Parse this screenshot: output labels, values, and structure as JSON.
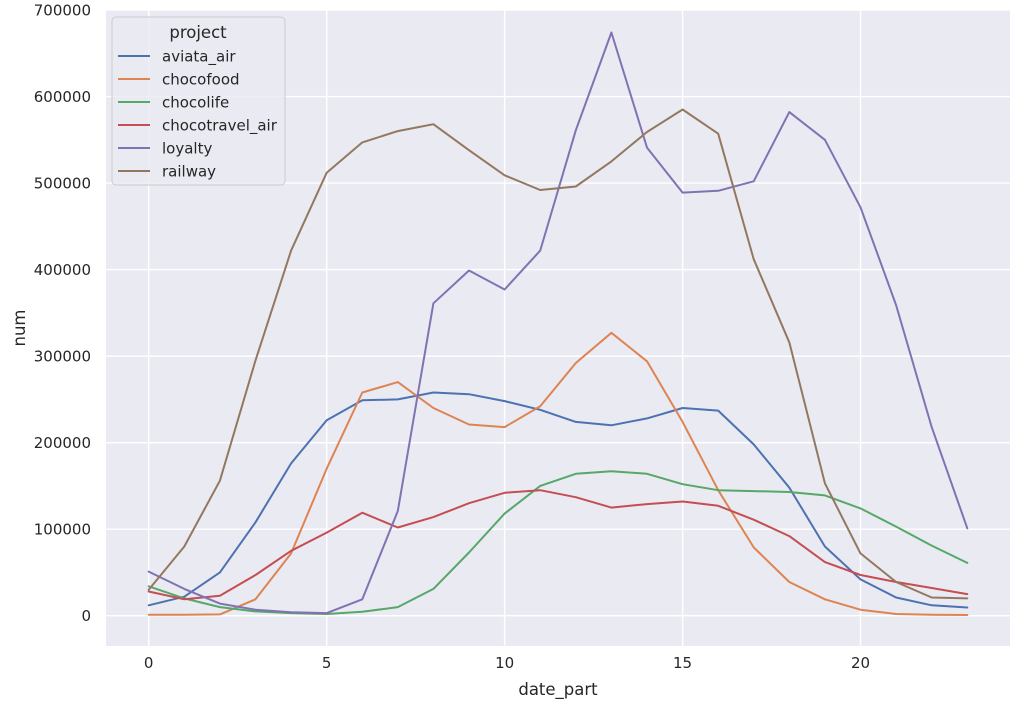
{
  "chart_data": {
    "type": "line",
    "xlabel": "date_part",
    "ylabel": "num",
    "xlim": [
      -1.2,
      24.2
    ],
    "ylim": [
      -35000,
      700000
    ],
    "xticks": [
      0,
      5,
      10,
      15,
      20
    ],
    "yticks": [
      0,
      100000,
      200000,
      300000,
      400000,
      500000,
      600000,
      700000
    ],
    "grid": true,
    "legend_title": "project",
    "legend_position": "top-left",
    "x": [
      0,
      1,
      2,
      3,
      4,
      5,
      6,
      7,
      8,
      9,
      10,
      11,
      12,
      13,
      14,
      15,
      16,
      17,
      18,
      19,
      20,
      21,
      22,
      23
    ],
    "series": [
      {
        "name": "aviata_air",
        "color": "#4c72b0",
        "values": [
          12000,
          22000,
          50000,
          108000,
          176000,
          226000,
          249000,
          250000,
          258000,
          256000,
          248000,
          238000,
          224000,
          220000,
          228000,
          240000,
          237000,
          198000,
          148000,
          80000,
          42000,
          21000,
          12000,
          9500
        ]
      },
      {
        "name": "chocofood",
        "color": "#dd8452",
        "values": [
          1000,
          1000,
          1500,
          19000,
          72000,
          170000,
          258000,
          270000,
          240000,
          221000,
          218000,
          242000,
          292000,
          327000,
          294000,
          224000,
          145000,
          79000,
          39000,
          19000,
          7000,
          2000,
          1000,
          800
        ]
      },
      {
        "name": "chocolife",
        "color": "#55a868",
        "values": [
          34000,
          20000,
          10000,
          5000,
          3000,
          2000,
          4500,
          10000,
          31000,
          73000,
          118000,
          150000,
          164000,
          167000,
          164000,
          152000,
          145000,
          144000,
          143000,
          139000,
          124000,
          103000,
          81000,
          61000
        ]
      },
      {
        "name": "chocotravel_air",
        "color": "#c44e52",
        "values": [
          28000,
          19000,
          23000,
          47000,
          75000,
          96000,
          119000,
          102000,
          114000,
          130000,
          142000,
          145000,
          137000,
          125000,
          129000,
          132000,
          127000,
          111000,
          92000,
          62000,
          47000,
          39000,
          32000,
          25000
        ]
      },
      {
        "name": "loyalty",
        "color": "#8172b3",
        "values": [
          51000,
          31000,
          14000,
          7000,
          4000,
          3000,
          19000,
          121000,
          361000,
          399000,
          377000,
          422000,
          561000,
          674000,
          541000,
          489000,
          491000,
          502000,
          582000,
          550000,
          472000,
          359000,
          218000,
          101000
        ]
      },
      {
        "name": "railway",
        "color": "#937860",
        "values": [
          30000,
          80000,
          156000,
          295000,
          422000,
          512000,
          547000,
          560000,
          568000,
          538000,
          509000,
          492000,
          496000,
          525000,
          559000,
          585000,
          557000,
          412000,
          316000,
          153000,
          72000,
          39000,
          21000,
          20000
        ]
      }
    ]
  }
}
